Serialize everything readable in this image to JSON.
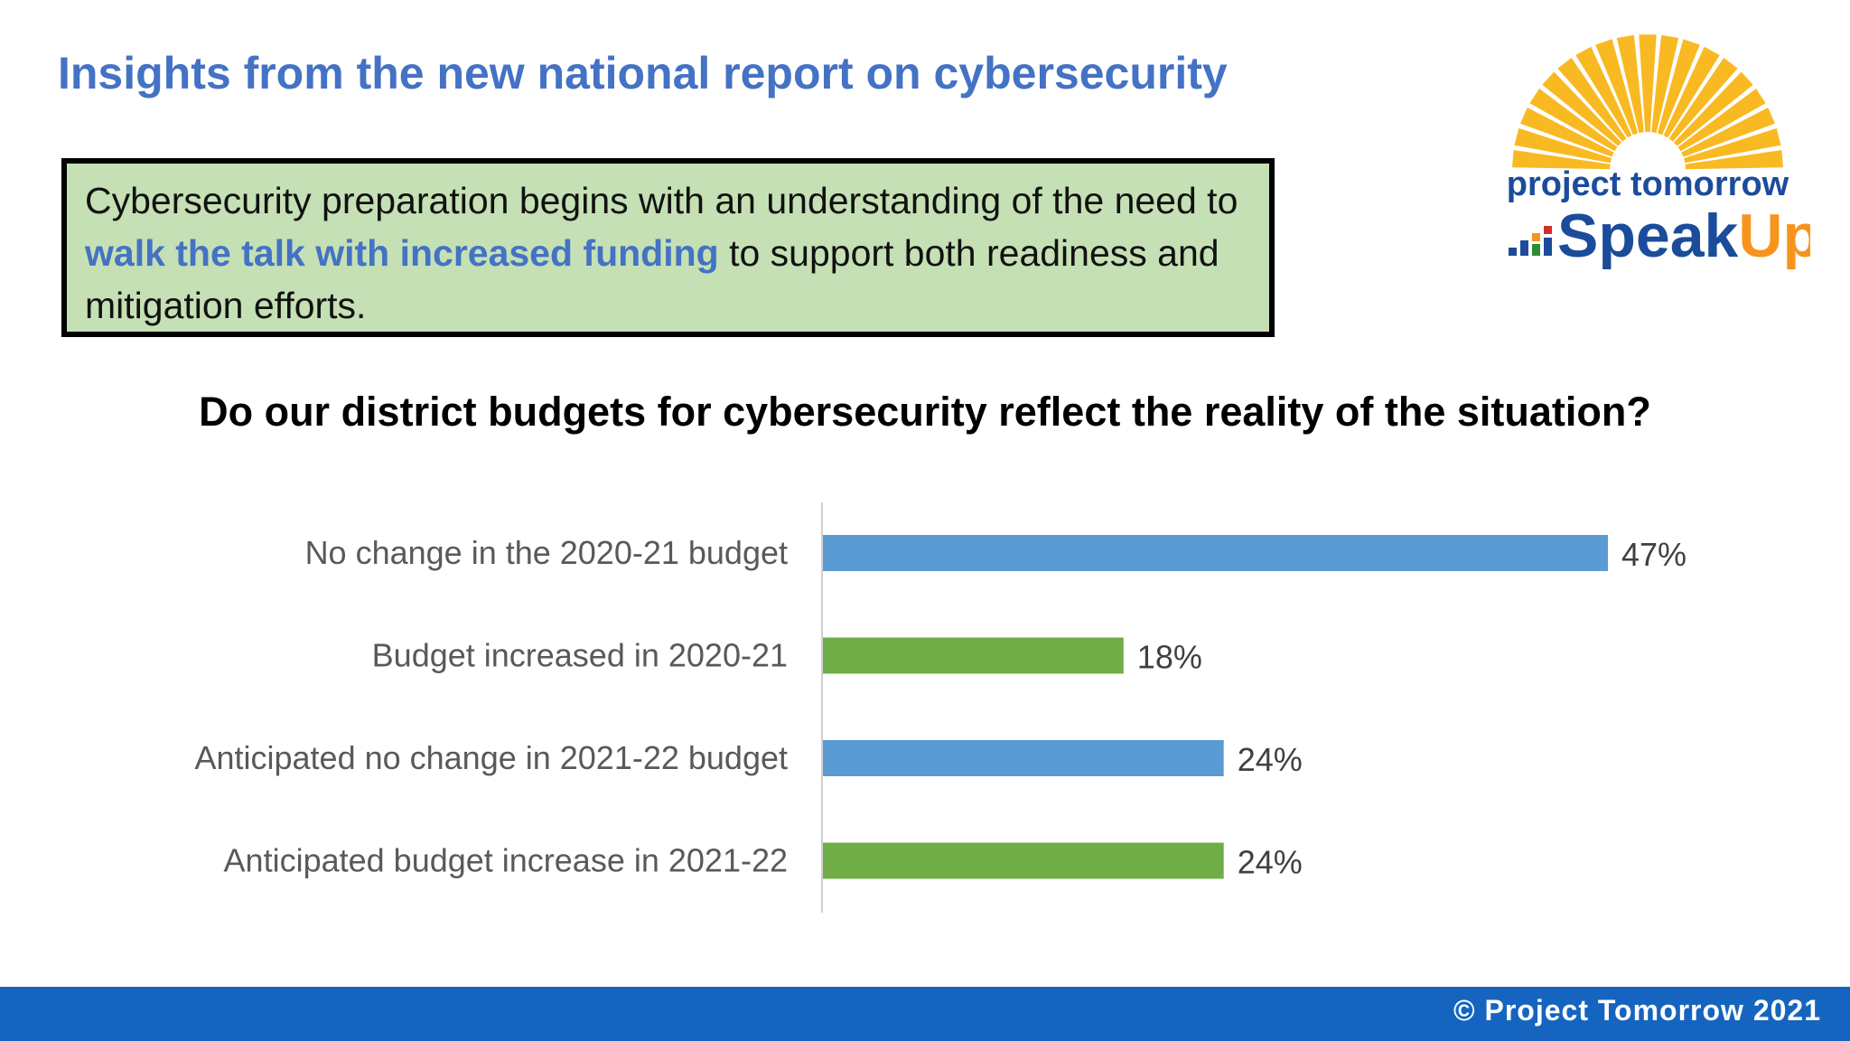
{
  "header": {
    "title": "Insights from the new national report on cybersecurity"
  },
  "callout": {
    "text_before": "Cybersecurity preparation begins with an understanding of the need to ",
    "highlight": "walk the talk with increased funding",
    "text_after": " to support both readiness and mitigation efforts."
  },
  "logo": {
    "line1": "project tomorrow",
    "line2a": "Speak",
    "line2b": "Up",
    "colors": {
      "rays": "#f9b923",
      "navy": "#1b4c9c",
      "orange": "#f7941d"
    }
  },
  "footer": {
    "text": "© Project Tomorrow 2021"
  },
  "chart_data": {
    "type": "bar",
    "orientation": "horizontal",
    "title": "Do our district budgets for cybersecurity reflect the reality of the situation?",
    "categories": [
      "No change in the 2020-21 budget",
      "Budget increased in 2020-21",
      "Anticipated no change in 2021-22 budget",
      "Anticipated budget increase in 2021-22"
    ],
    "values": [
      47,
      18,
      24,
      24
    ],
    "value_labels": [
      "47%",
      "18%",
      "24%",
      "24%"
    ],
    "unit": "%",
    "colors": [
      "#5b9bd5",
      "#70ad47",
      "#5b9bd5",
      "#70ad47"
    ],
    "xlim": [
      0,
      47
    ],
    "grid": false,
    "legend": "none"
  }
}
